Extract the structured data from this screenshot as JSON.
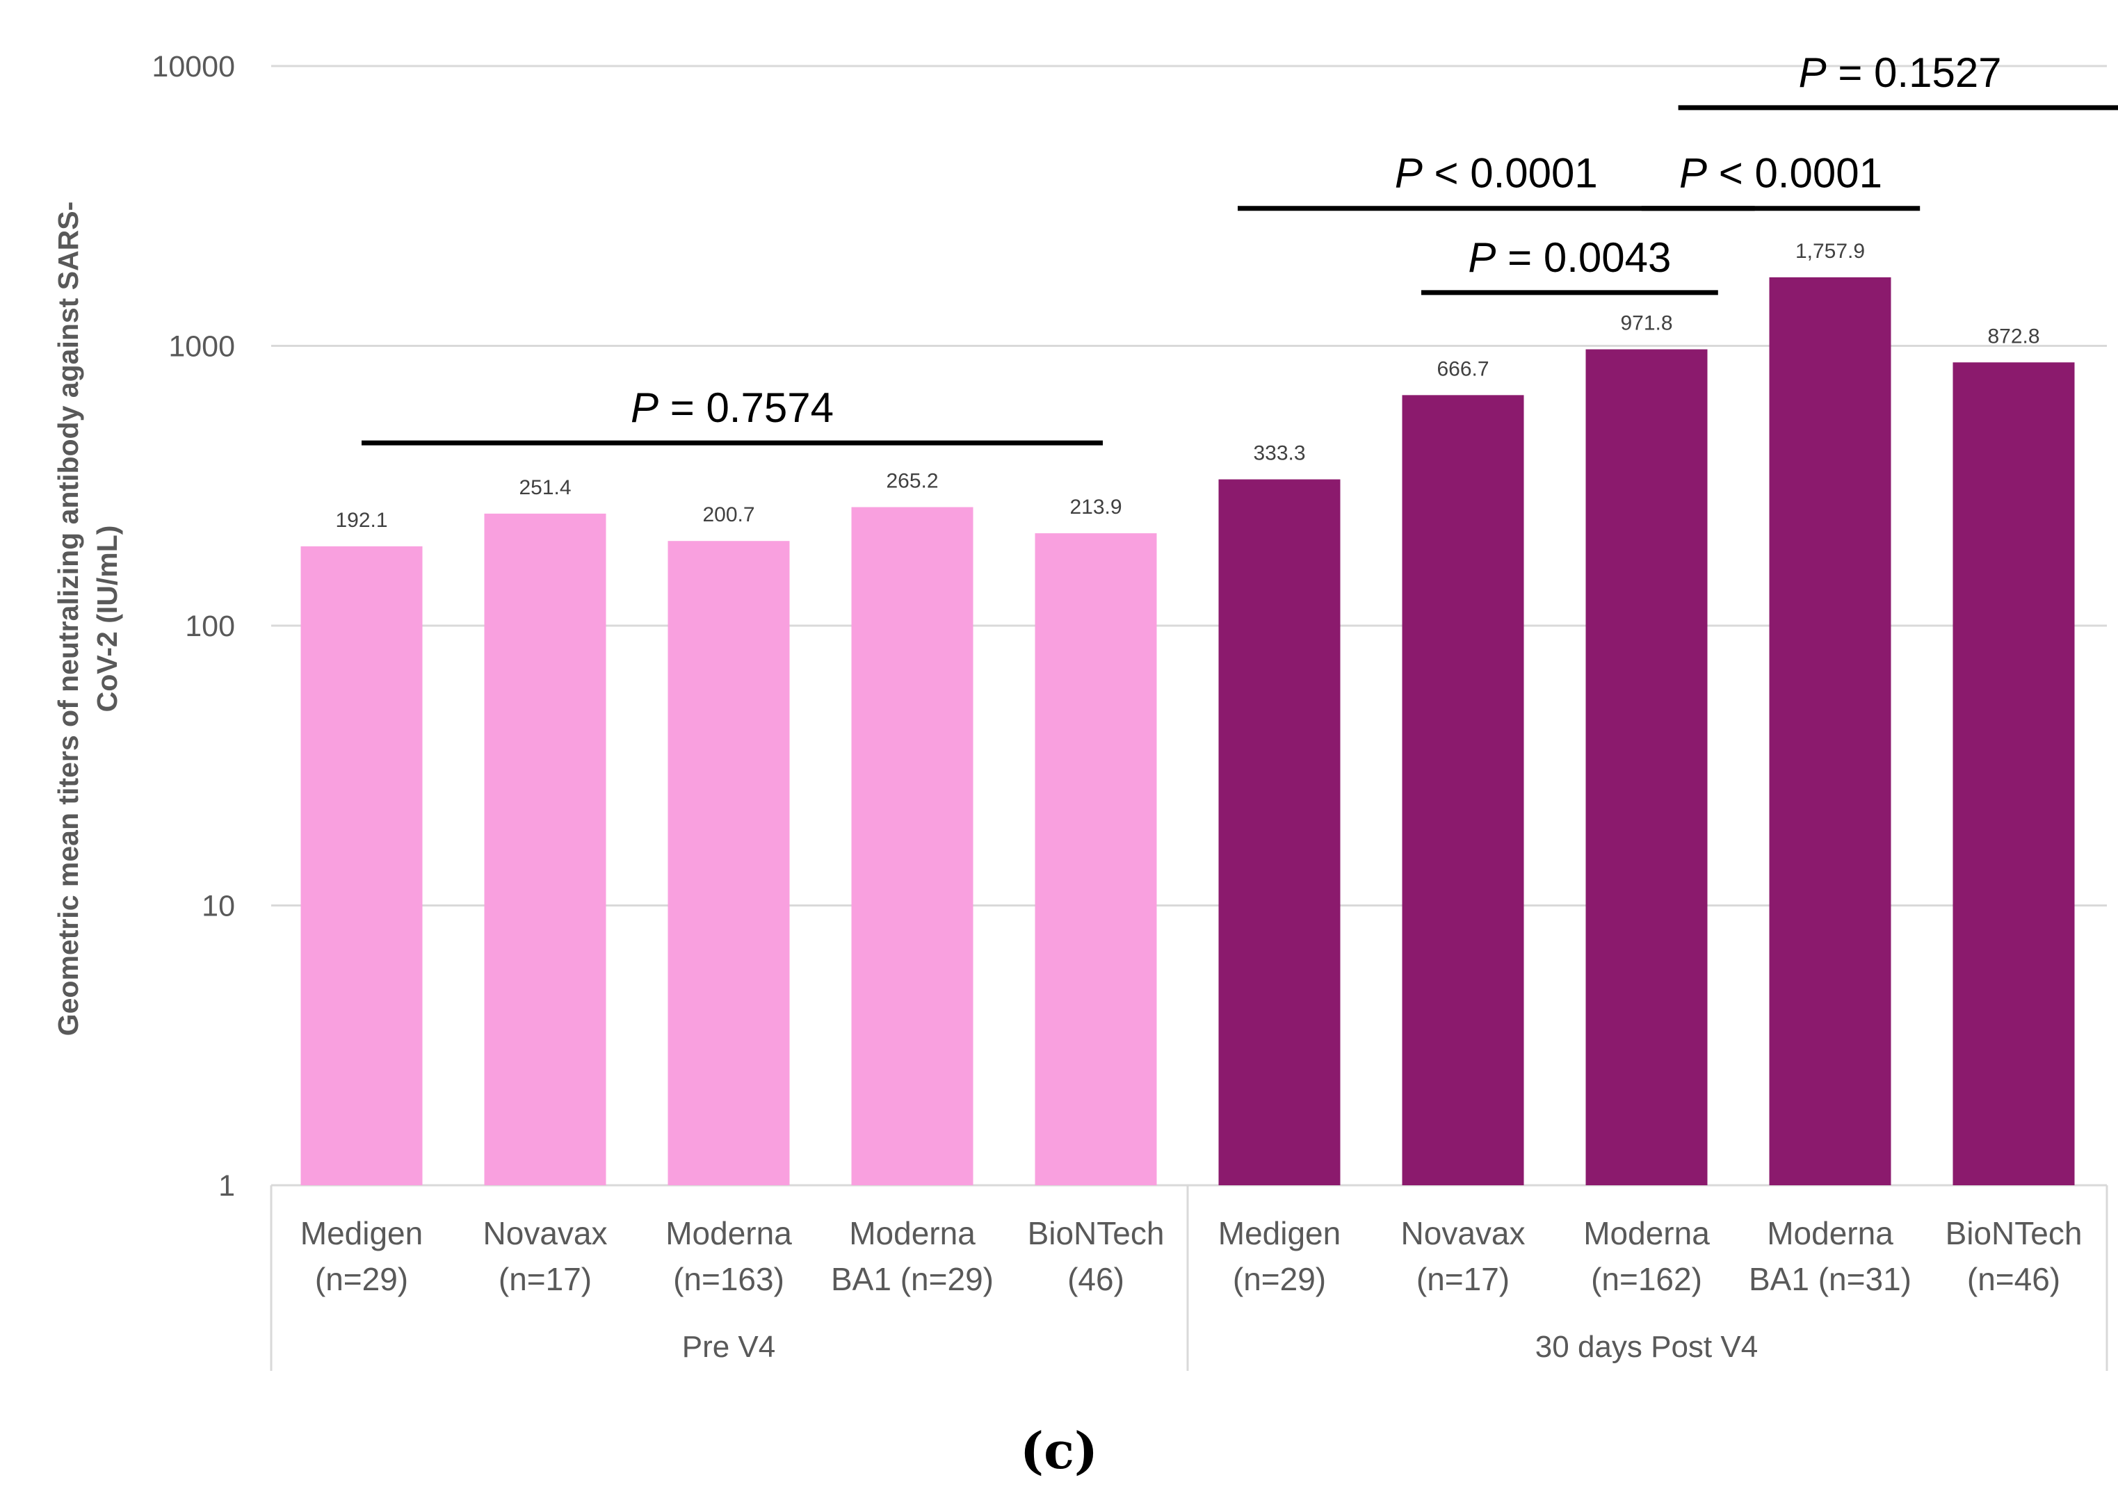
{
  "chart_data": {
    "type": "bar",
    "scale": "log",
    "ylim": [
      1,
      10000
    ],
    "yticks": [
      "1",
      "10",
      "100",
      "1000",
      "10000"
    ],
    "ylabel_lines": [
      "Geometric mean titers of neutralizing antibody against SARS-",
      "CoV-2 (IU/mL)"
    ],
    "series": [
      {
        "name": "Pre V4",
        "color": "#F9A0DF",
        "bar_indices": [
          0,
          1,
          2,
          3,
          4
        ]
      },
      {
        "name": "30 days Post V4",
        "color": "#8B1A6D",
        "bar_indices": [
          5,
          6,
          7,
          8,
          9
        ]
      }
    ],
    "bars": [
      {
        "line1": "Medigen",
        "line2": "(n=29)",
        "value": 192.1,
        "label": "192.1"
      },
      {
        "line1": "Novavax",
        "line2": "(n=17)",
        "value": 251.4,
        "label": "251.4"
      },
      {
        "line1": "Moderna",
        "line2": "(n=163)",
        "value": 200.7,
        "label": "200.7"
      },
      {
        "line1": "Moderna",
        "line2": "BA1 (n=29)",
        "value": 265.2,
        "label": "265.2"
      },
      {
        "line1": "BioNTech",
        "line2": "(46)",
        "value": 213.9,
        "label": "213.9"
      },
      {
        "line1": "Medigen",
        "line2": "(n=29)",
        "value": 333.3,
        "label": "333.3"
      },
      {
        "line1": "Novavax",
        "line2": "(n=17)",
        "value": 666.7,
        "label": "666.7"
      },
      {
        "line1": "Moderna",
        "line2": "(n=162)",
        "value": 971.8,
        "label": "971.8"
      },
      {
        "line1": "Moderna",
        "line2": "BA1 (n=31)",
        "value": 1757.9,
        "label": "1,757.9"
      },
      {
        "line1": "BioNTech",
        "line2": "(n=46)",
        "value": 872.8,
        "label": "872.8"
      }
    ],
    "groups": [
      {
        "label": "Pre V4",
        "from": 0,
        "to": 4
      },
      {
        "label": "30 days Post V4",
        "from": 5,
        "to": 9
      }
    ],
    "significance": [
      {
        "p": "P",
        "rest": " = 0.7574",
        "from": 0,
        "to": 4,
        "at": 450
      },
      {
        "p": "P",
        "rest": " < 0.0001",
        "from": 5,
        "to": 7.4,
        "at": 3100
      },
      {
        "p": "P",
        "rest": " = 0.0043",
        "from": 6,
        "to": 7.2,
        "at": 1550
      },
      {
        "p": "P",
        "rest": " < 0.0001",
        "from": 7.2,
        "to": 8.3,
        "at": 3100
      },
      {
        "p": "P",
        "rest": " = 0.1527",
        "from": 7.4,
        "to": 9.4,
        "at": 7100
      }
    ]
  },
  "caption": "(c)"
}
